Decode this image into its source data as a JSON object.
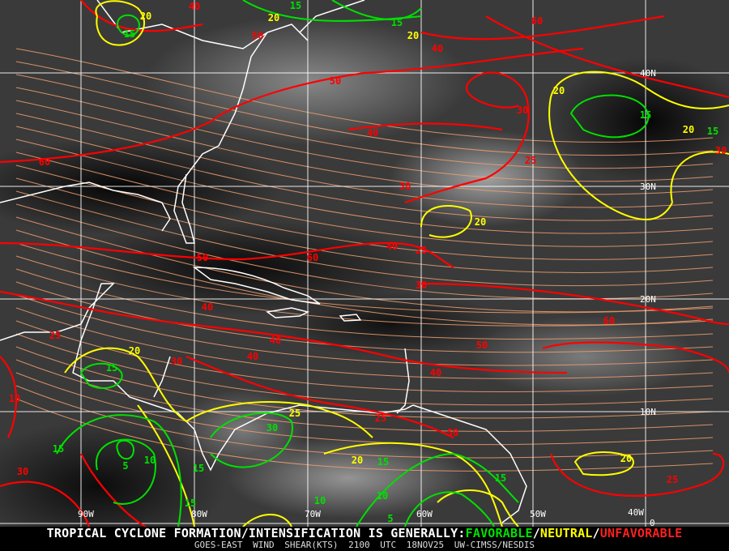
{
  "map": {
    "longitude_labels": [
      "90W",
      "80W",
      "70W",
      "60W",
      "50W",
      "40W"
    ],
    "latitude_labels": [
      "40N",
      "30N",
      "20N",
      "10N",
      "0"
    ],
    "contour_labels": [
      "20",
      "15",
      "40",
      "50",
      "15",
      "20",
      "20",
      "40",
      "15",
      "60",
      "20",
      "30",
      "15",
      "20",
      "15",
      "30",
      "50",
      "40",
      "60",
      "25",
      "30",
      "20",
      "40",
      "25",
      "50",
      "30",
      "60",
      "40",
      "60",
      "50",
      "40",
      "40",
      "25",
      "15",
      "20",
      "30",
      "40",
      "25",
      "50",
      "30",
      "25",
      "15",
      "10",
      "5",
      "15",
      "10",
      "15",
      "10",
      "20",
      "15",
      "10",
      "5",
      "15",
      "20",
      "25",
      "30"
    ],
    "colors": {
      "favorable": "#00e000",
      "neutral": "#ffff00",
      "unfavorable": "#ff0000",
      "streamline": "#f0a070",
      "coast": "#ffffff",
      "grid": "#ffffff"
    }
  },
  "footer": {
    "prefix": "TROPICAL CYCLONE FORMATION/INTENSIFICATION IS GENERALLY:",
    "favorable": "FAVORABLE",
    "sep1": "/",
    "neutral": "NEUTRAL",
    "sep2": "/",
    "unfavorable": "UNFAVORABLE",
    "product": "GOES-EAST WIND SHEAR(KTS)",
    "time": "2100 UTC",
    "date": "18NOV25",
    "source": "UW-CIMSS/NESDIS"
  }
}
